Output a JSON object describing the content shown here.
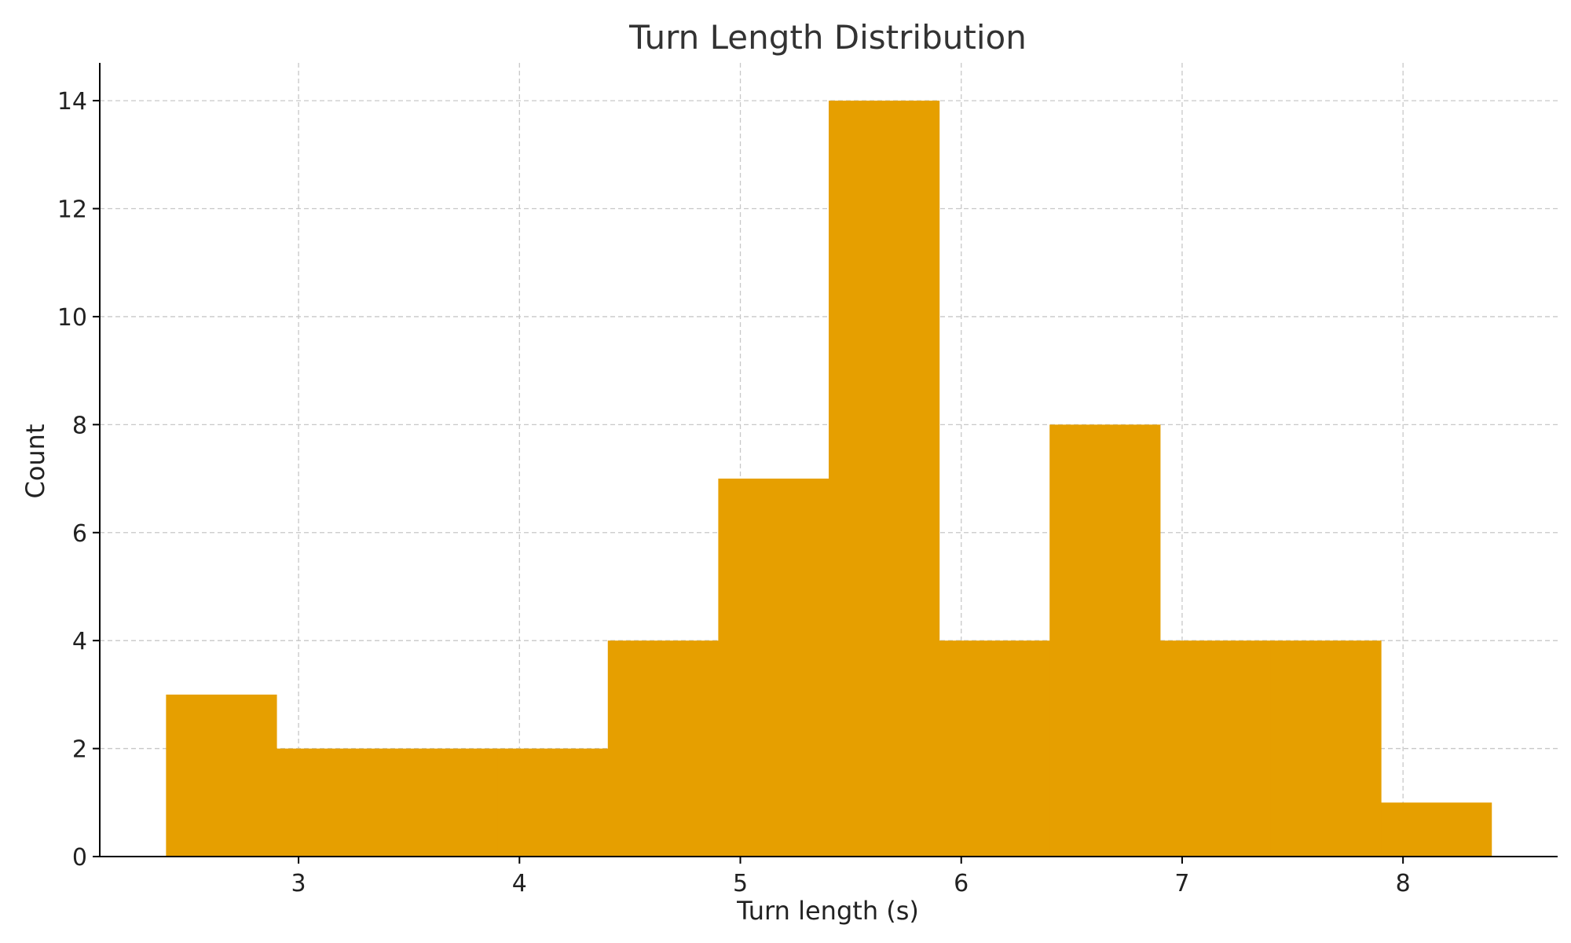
{
  "chart_data": {
    "type": "bar",
    "title": "Turn Length Distribution",
    "xlabel": "Turn length (s)",
    "ylabel": "Count",
    "bin_edges": [
      2.4,
      2.9,
      3.4,
      3.9,
      4.4,
      4.9,
      5.4,
      5.9,
      6.4,
      6.9,
      7.4,
      7.9,
      8.4
    ],
    "values": [
      3,
      2,
      2,
      2,
      4,
      7,
      14,
      4,
      8,
      4,
      4,
      1
    ],
    "xlim": [
      2.1,
      8.7
    ],
    "ylim": [
      0,
      14.7
    ],
    "x_ticks": [
      3,
      4,
      5,
      6,
      7,
      8
    ],
    "y_ticks": [
      0,
      2,
      4,
      6,
      8,
      10,
      12,
      14
    ],
    "bar_color": "#E69F00",
    "grid": true
  }
}
